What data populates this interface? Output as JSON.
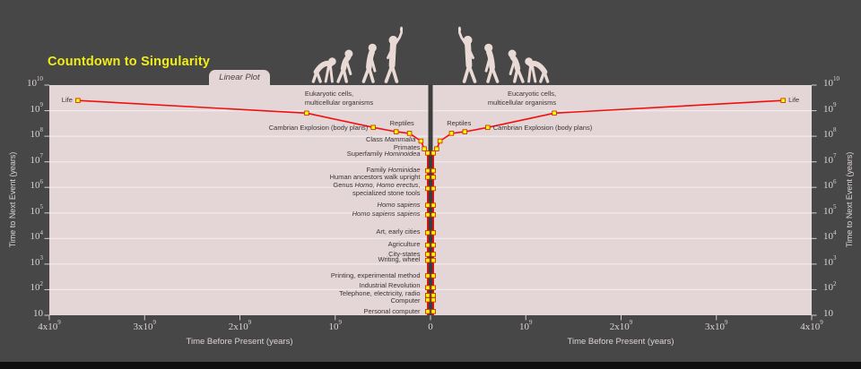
{
  "window": {
    "background": "#474747",
    "footer_bar_color": "#101010"
  },
  "chart": {
    "title": "Countdown to Singularity",
    "title_color": "#f0ee16",
    "tab_label": "Linear Plot",
    "x_axis_label": "Time Before Present (years)",
    "y_axis_label": "Time to Next Event (years)",
    "plot_bg": "#e4d6d6",
    "grid_color": "#f2eaea",
    "line_color": "#f01010",
    "marker_fill": "#ffff00",
    "marker_edge": "#cc3300",
    "center_bar_color": "#3d3d3d",
    "event_label_color": "#3b3434",
    "axis_text_color": "#ddd4d4",
    "silhouette_color": "#e9dad6",
    "x_ticks_left": [
      "4x10^9",
      "3x10^9",
      "2x10^9",
      "10^9",
      "0"
    ],
    "x_ticks_right": [
      "10^9",
      "2x10^9",
      "3x10^9",
      "4x10^9"
    ],
    "y_ticks": [
      "10^10",
      "10^9",
      "10^8",
      "10^7",
      "10^6",
      "10^5",
      "10^4",
      "10^3",
      "10^2",
      "10"
    ]
  },
  "chart_data": {
    "type": "line",
    "mirrored": true,
    "x_scale": "linear",
    "y_scale": "log",
    "x_range_years": [
      0,
      4000000000.0
    ],
    "y_range_years": [
      10,
      10000000000.0
    ],
    "grid_exponents": [
      9,
      8,
      7,
      6,
      5,
      4,
      3,
      2
    ],
    "events": [
      {
        "id": "life",
        "years_before_present": 3700000000.0,
        "time_to_next_event_years": 2500000000.0,
        "sides": "both",
        "label_lines": [
          [
            {
              "t": "Life"
            }
          ]
        ]
      },
      {
        "id": "eukaryotic",
        "years_before_present": 1300000000.0,
        "time_to_next_event_years": 800000000.0,
        "sides": "both",
        "label_lines": [
          [
            {
              "t": "Eukaryotic cells,"
            }
          ],
          [
            {
              "t": "multicellular organisms"
            }
          ]
        ],
        "label_lines_right": [
          [
            {
              "t": "Eucaryotic cells,"
            }
          ],
          [
            {
              "t": "multicellular organisms"
            }
          ]
        ]
      },
      {
        "id": "cambrian",
        "years_before_present": 600000000.0,
        "time_to_next_event_years": 220000000.0,
        "sides": "both",
        "label_lines": [
          [
            {
              "t": "Cambrian Explosion (body plans)"
            }
          ]
        ]
      },
      {
        "id": "reptiles",
        "years_before_present": 360000000.0,
        "time_to_next_event_years": 150000000.0,
        "sides": "both",
        "label_lines": [
          [
            {
              "t": "Reptiles"
            }
          ]
        ]
      },
      {
        "id": "reptiles2",
        "years_before_present": 220000000.0,
        "time_to_next_event_years": 130000000.0,
        "sides": "none",
        "label_lines": []
      },
      {
        "id": "mammalia",
        "years_before_present": 100000000.0,
        "time_to_next_event_years": 65000000.0,
        "sides": "left",
        "label_lines": [
          [
            {
              "t": "Class "
            },
            {
              "t": "Mammalia",
              "i": true
            }
          ]
        ]
      },
      {
        "id": "primates",
        "years_before_present": 65000000.0,
        "time_to_next_event_years": 32000000.0,
        "sides": "left",
        "label_lines": [
          [
            {
              "t": "Primates"
            }
          ]
        ]
      },
      {
        "id": "hominoidea",
        "years_before_present": 30000000.0,
        "time_to_next_event_years": 22000000.0,
        "sides": "left",
        "label_lines": [
          [
            {
              "t": "Superfamily "
            },
            {
              "t": "Hominoidea",
              "i": true
            }
          ]
        ]
      },
      {
        "id": "hominidae",
        "years_before_present": 15000000.0,
        "time_to_next_event_years": 4500000.0,
        "sides": "left",
        "label_lines": [
          [
            {
              "t": "Family "
            },
            {
              "t": "Hominidae",
              "i": true
            }
          ]
        ]
      },
      {
        "id": "upright",
        "years_before_present": 7000000.0,
        "time_to_next_event_years": 2500000.0,
        "sides": "left",
        "label_lines": [
          [
            {
              "t": "Human ancestors walk upright"
            }
          ]
        ]
      },
      {
        "id": "genus",
        "years_before_present": 2000000.0,
        "time_to_next_event_years": 900000.0,
        "sides": "left",
        "label_lines": [
          [
            {
              "t": "Genus "
            },
            {
              "t": "Homo, Homo erectus",
              "i": true
            },
            {
              "t": ","
            }
          ],
          [
            {
              "t": "specialized stone tools"
            }
          ]
        ]
      },
      {
        "id": "sapiens",
        "years_before_present": 500000.0,
        "time_to_next_event_years": 200000.0,
        "sides": "left",
        "label_lines": [
          [
            {
              "t": "Homo sapiens",
              "i": true
            }
          ]
        ]
      },
      {
        "id": "sapiens_sapiens",
        "years_before_present": 150000.0,
        "time_to_next_event_years": 85000.0,
        "sides": "left",
        "label_lines": [
          [
            {
              "t": "Homo sapiens sapiens",
              "i": true
            }
          ]
        ]
      },
      {
        "id": "art",
        "years_before_present": 40000.0,
        "time_to_next_event_years": 17000.0,
        "sides": "left",
        "label_lines": [
          [
            {
              "t": "Art, early cities"
            }
          ]
        ]
      },
      {
        "id": "agriculture",
        "years_before_present": 12000.0,
        "time_to_next_event_years": 5500.0,
        "sides": "left",
        "label_lines": [
          [
            {
              "t": "Agriculture"
            }
          ]
        ]
      },
      {
        "id": "city_states",
        "years_before_present": 5500.0,
        "time_to_next_event_years": 2400.0,
        "sides": "left",
        "label_lines": [
          [
            {
              "t": "City-states"
            }
          ]
        ]
      },
      {
        "id": "writing",
        "years_before_present": 5000.0,
        "time_to_next_event_years": 1400.0,
        "sides": "left",
        "label_lines": [
          [
            {
              "t": "Writing, wheel"
            }
          ]
        ]
      },
      {
        "id": "printing",
        "years_before_present": 500,
        "time_to_next_event_years": 350,
        "sides": "left",
        "label_lines": [
          [
            {
              "t": "Printing, experimental method"
            }
          ]
        ]
      },
      {
        "id": "industrial",
        "years_before_present": 220,
        "time_to_next_event_years": 120,
        "sides": "left",
        "label_lines": [
          [
            {
              "t": "Industrial Revolution"
            }
          ]
        ]
      },
      {
        "id": "telephone",
        "years_before_present": 120,
        "time_to_next_event_years": 60,
        "sides": "left",
        "label_lines": [
          [
            {
              "t": "Telephone,  electricity, radio"
            }
          ]
        ]
      },
      {
        "id": "computer",
        "years_before_present": 60,
        "time_to_next_event_years": 40,
        "sides": "left",
        "label_lines": [
          [
            {
              "t": "Computer"
            }
          ]
        ]
      },
      {
        "id": "pc",
        "years_before_present": 30,
        "time_to_next_event_years": 14,
        "sides": "left",
        "label_lines": [
          [
            {
              "t": "Personal computer"
            }
          ]
        ]
      }
    ]
  }
}
